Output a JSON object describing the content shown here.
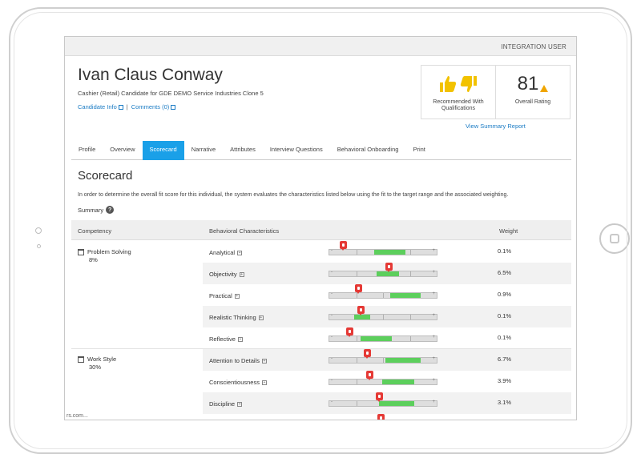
{
  "header": {
    "user_name": "INTEGRATION USER"
  },
  "candidate": {
    "name": "Ivan Claus Conway",
    "subtitle": "Cashier (Retail) Candidate for GDE DEMO Service Industries Clone 5",
    "links": {
      "info": "Candidate Info",
      "separator": "|",
      "comments": "Comments (0)"
    }
  },
  "summary": {
    "recommend_label": "Recommended With Qualifications",
    "rating_value": "81",
    "rating_label": "Overall Rating",
    "view_link": "View Summary Report",
    "colors": {
      "thumb": "#f2c200",
      "warning": "#f0a500"
    }
  },
  "tabs": [
    {
      "label": "Profile",
      "active": false
    },
    {
      "label": "Overview",
      "active": false
    },
    {
      "label": "Scorecard",
      "active": true
    },
    {
      "label": "Narrative",
      "active": false
    },
    {
      "label": "Attributes",
      "active": false
    },
    {
      "label": "Interview Questions",
      "active": false
    },
    {
      "label": "Behavioral Onboarding",
      "active": false
    },
    {
      "label": "Print",
      "active": false
    }
  ],
  "scorecard": {
    "title": "Scorecard",
    "description": "In order to determine the overall fit score for this individual, the system evaluates the characteristics listed below using the fit to the target range and the associated weighting.",
    "summary_label": "Summary",
    "columns": {
      "competency": "Competency",
      "behavioral": "Behavioral Characteristics",
      "weight": "Weight"
    },
    "slider_labels": {
      "min": "-",
      "max": "+"
    },
    "competencies": [
      {
        "name": "Problem Solving",
        "percent": "8%"
      },
      {
        "name": "Work Style",
        "percent": "30%"
      }
    ],
    "rows": [
      {
        "label": "Analytical",
        "weight": "0.1%",
        "target_start": 0.42,
        "target_end": 0.71,
        "score": 0.13
      },
      {
        "label": "Objectivity",
        "weight": "6.5%",
        "target_start": 0.44,
        "target_end": 0.65,
        "score": 0.55
      },
      {
        "label": "Practical",
        "weight": "0.9%",
        "target_start": 0.57,
        "target_end": 0.85,
        "score": 0.27
      },
      {
        "label": "Realistic Thinking",
        "weight": "0.1%",
        "target_start": 0.23,
        "target_end": 0.38,
        "score": 0.29
      },
      {
        "label": "Reflective",
        "weight": "0.1%",
        "target_start": 0.29,
        "target_end": 0.58,
        "score": 0.19
      },
      {
        "label": "Attention to Details",
        "weight": "6.7%",
        "target_start": 0.52,
        "target_end": 0.85,
        "score": 0.35
      },
      {
        "label": "Conscientiousness",
        "weight": "3.9%",
        "target_start": 0.49,
        "target_end": 0.79,
        "score": 0.37
      },
      {
        "label": "Discipline",
        "weight": "3.1%",
        "target_start": 0.46,
        "target_end": 0.79,
        "score": 0.46
      }
    ],
    "partial_row": {
      "score": 0.48
    }
  },
  "status_url": "rs.com..."
}
